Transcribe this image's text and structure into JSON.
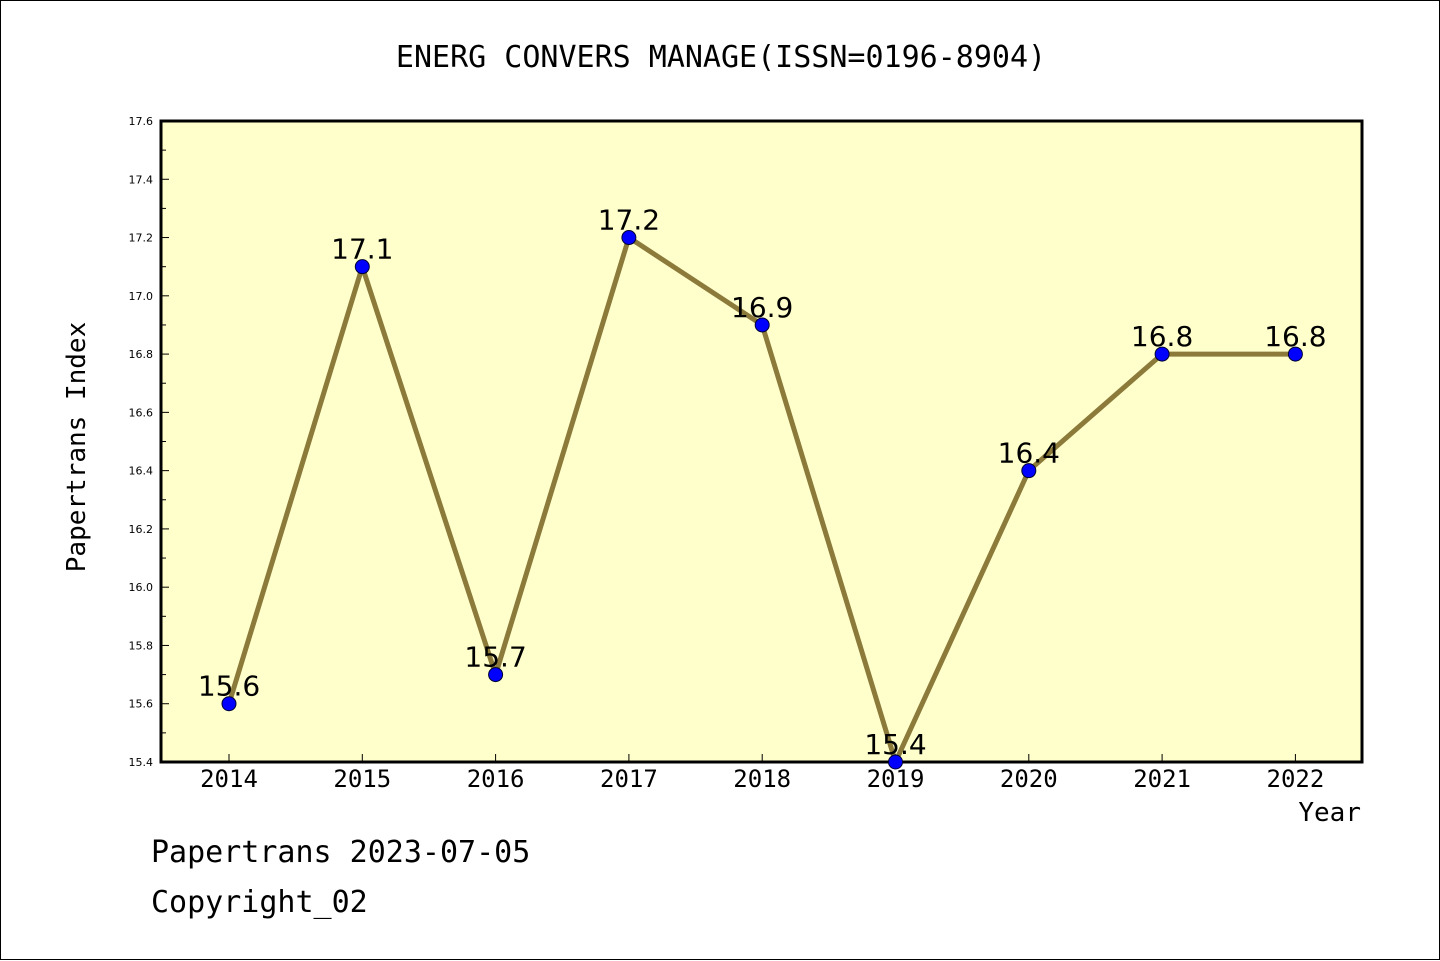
{
  "chart_data": {
    "type": "line",
    "title": "ENERG CONVERS MANAGE(ISSN=0196-8904)",
    "xlabel": "Year",
    "ylabel": "Papertrans Index",
    "categories": [
      "2014",
      "2015",
      "2016",
      "2017",
      "2018",
      "2019",
      "2020",
      "2021",
      "2022"
    ],
    "values": [
      15.6,
      17.1,
      15.7,
      17.2,
      16.9,
      15.4,
      16.4,
      16.8,
      16.8
    ],
    "data_labels": [
      "15.6",
      "17.1",
      "15.7",
      "17.2",
      "16.9",
      "15.4",
      "16.4",
      "16.8",
      "16.8"
    ],
    "ylim": [
      15.4,
      17.6
    ],
    "y_ticks": [
      "15.4",
      "15.6",
      "15.8",
      "16.0",
      "16.2",
      "16.4",
      "16.6",
      "16.8",
      "17.0",
      "17.2",
      "17.4",
      "17.6"
    ],
    "grid": false,
    "legend": "none",
    "colors": {
      "plot_background": "#ffffcc",
      "line": "#8b7a3a",
      "marker": "#0000ff",
      "axis": "#000000"
    }
  },
  "footer": {
    "date_line": "Papertrans 2023-07-05",
    "copyright_line": "Copyright_02"
  }
}
